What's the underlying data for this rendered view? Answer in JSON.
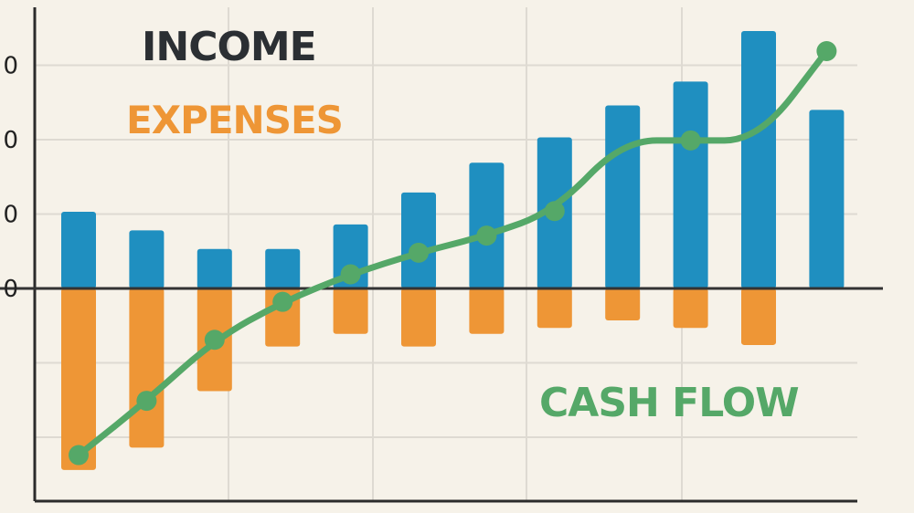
{
  "chart_data": {
    "type": "bar",
    "categories": [
      "",
      "",
      "",
      "",
      "",
      "",
      "",
      "",
      "",
      "",
      "",
      ""
    ],
    "ylim": [
      -0.9,
      1.2
    ],
    "y_tick_labels_visible": [
      "0",
      "0",
      "0",
      "0"
    ],
    "y_ticks": [
      0.3,
      0.2,
      0.1,
      0.0,
      -0.1,
      -0.2
    ],
    "grid": true,
    "series": [
      {
        "name": "INCOME",
        "kind": "bar",
        "color": "#1f8fc0",
        "values": [
          0.103,
          0.078,
          0.053,
          0.053,
          0.086,
          0.129,
          0.169,
          0.203,
          0.246,
          0.278,
          0.346,
          0.24
        ]
      },
      {
        "name": "EXPENSES",
        "kind": "bar",
        "color": "#ee9636",
        "values": [
          -0.244,
          -0.214,
          -0.138,
          -0.078,
          -0.061,
          -0.078,
          -0.061,
          -0.053,
          -0.043,
          -0.053,
          -0.076,
          null
        ]
      },
      {
        "name": "CASH FLOW",
        "kind": "line",
        "color": "#55a868",
        "values": [
          -0.224,
          -0.151,
          -0.069,
          -0.018,
          0.019,
          0.048,
          0.071,
          0.104,
          0.199,
          0.199,
          0.199,
          0.319
        ]
      }
    ],
    "legend": [
      {
        "label": "INCOME",
        "color": "#2b2f33"
      },
      {
        "label": "EXPENSES",
        "color": "#ee9636"
      },
      {
        "label": "CASH FLOW",
        "color": "#55a868"
      }
    ]
  }
}
